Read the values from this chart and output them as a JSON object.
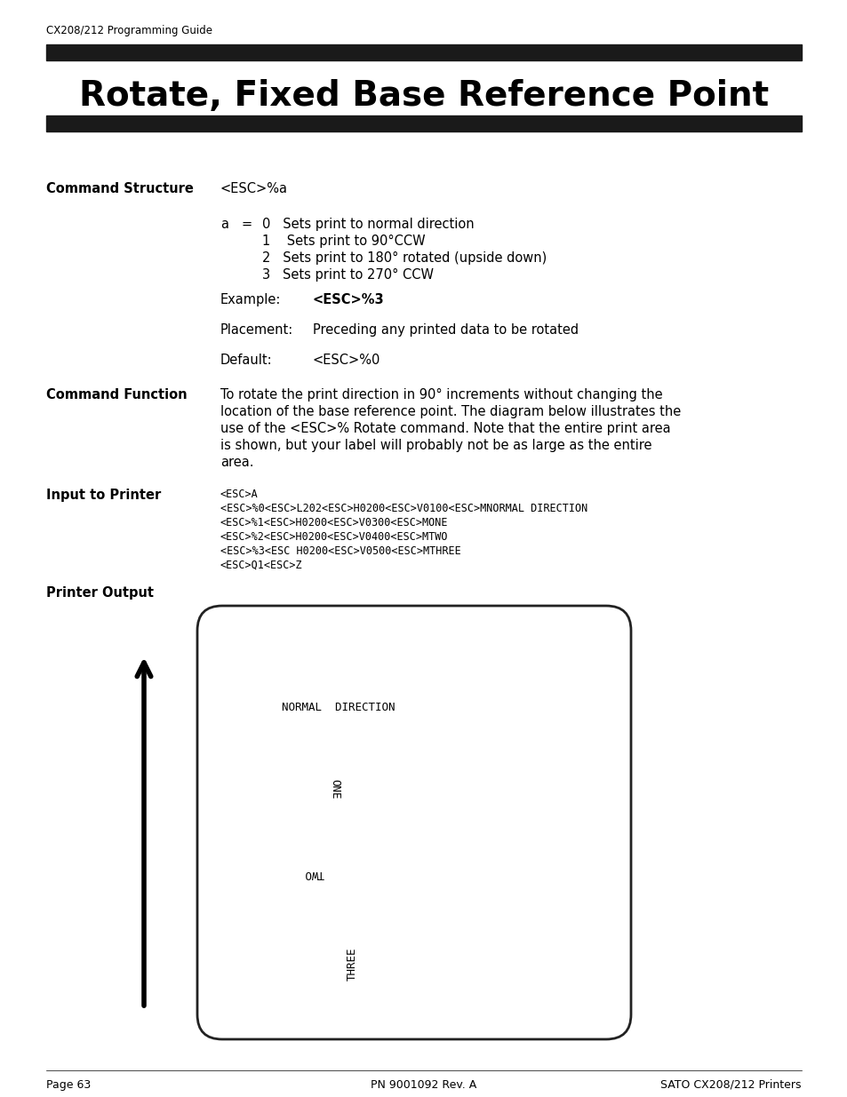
{
  "header_text": "CX208/212 Programming Guide",
  "title": "Rotate, Fixed Base Reference Point",
  "section1_label": "Command Structure",
  "section1_cmd": "<ESC>%a",
  "param_lines": [
    "0   Sets print to normal direction",
    "1    Sets print to 90°CCW",
    "2   Sets print to 180° rotated (upside down)",
    "3   Sets print to 270° CCW"
  ],
  "example_label": "Example:",
  "example_value": "<ESC>%3",
  "placement_label": "Placement:",
  "placement_value": "Preceding any printed data to be rotated",
  "default_label": "Default:",
  "default_value": "<ESC>%0",
  "section2_label": "Command Function",
  "section2_text": "To rotate the print direction in 90° increments without changing the\nlocation of the base reference point. The diagram below illustrates the\nuse of the <ESC>% Rotate command. Note that the entire print area\nis shown, but your label will probably not be as large as the entire\narea.",
  "section3_label": "Input to Printer",
  "section3_lines": [
    "<ESC>A",
    "<ESC>%0<ESC>L202<ESC>H0200<ESC>V0100<ESC>MNORMAL DIRECTION",
    "<ESC>%1<ESC>H0200<ESC>V0300<ESC>MONE",
    "<ESC>%2<ESC>H0200<ESC>V0400<ESC>MTWO",
    "<ESC>%3<ESC H0200<ESC>V0500<ESC>MTHREE",
    "<ESC>Q1<ESC>Z"
  ],
  "section4_label": "Printer Output",
  "label_text_normal": "NORMAL  DIRECTION",
  "label_text_one": "ONE",
  "label_text_two": "TWO",
  "label_text_three": "THREE",
  "footer_left": "Page 63",
  "footer_center": "PN 9001092 Rev. A",
  "footer_right": "SATO CX208/212 Printers",
  "bg_color": "#ffffff",
  "bar_color": "#1a1a1a",
  "text_color": "#000000"
}
